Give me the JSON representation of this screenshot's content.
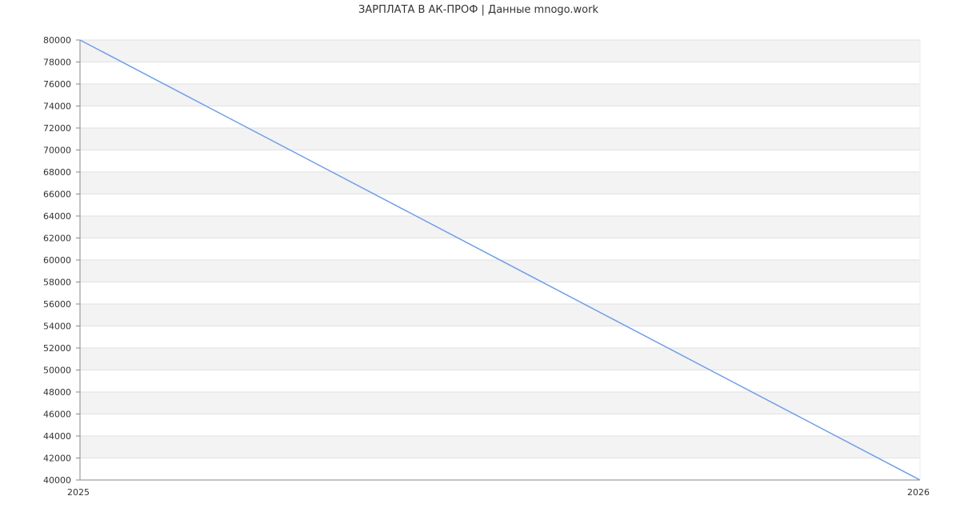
{
  "chart_data": {
    "type": "line",
    "title": "ЗАРПЛАТА В АК-ПРОФ | Данные mnogo.work",
    "xlabel": "",
    "ylabel": "",
    "x": [
      "2025",
      "2026"
    ],
    "series": [
      {
        "values": [
          80000,
          40000
        ],
        "color": "#6d9eeb"
      }
    ],
    "ylim": [
      40000,
      80000
    ],
    "ytick_step": 2000,
    "grid": true,
    "band_colors": [
      "#f3f3f3",
      "#ffffff"
    ],
    "legend": "none"
  }
}
